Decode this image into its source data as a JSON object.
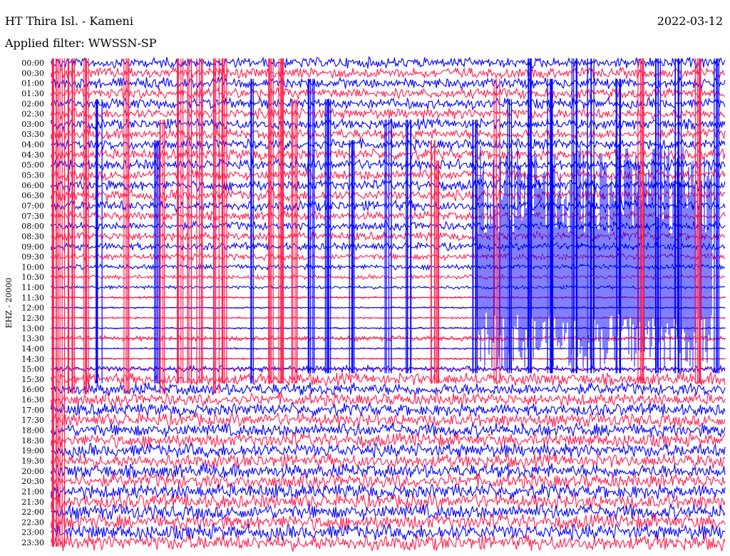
{
  "header": {
    "station": "HT Thira Isl. - Kameni",
    "filter": "Applied filter: WWSSN-SP",
    "date": "2022-03-12"
  },
  "chart_data": {
    "type": "helicorder",
    "ylabel": "EHZ - 20000",
    "colors": {
      "even_trace": "#0000ff",
      "odd_trace": "#ff1f4f",
      "grid": "#ff2a55",
      "background": "#ffffff"
    },
    "rows": [
      {
        "label": "00:00",
        "color": "blue",
        "amp": 0.25
      },
      {
        "label": "00:30",
        "color": "red",
        "amp": 0.25
      },
      {
        "label": "01:00",
        "color": "blue",
        "amp": 0.25
      },
      {
        "label": "01:30",
        "color": "red",
        "amp": 0.25
      },
      {
        "label": "02:00",
        "color": "blue",
        "amp": 0.25
      },
      {
        "label": "02:30",
        "color": "red",
        "amp": 0.25
      },
      {
        "label": "03:00",
        "color": "blue",
        "amp": 0.25
      },
      {
        "label": "03:30",
        "color": "red",
        "amp": 0.25
      },
      {
        "label": "04:00",
        "color": "blue",
        "amp": 0.25
      },
      {
        "label": "04:30",
        "color": "red",
        "amp": 0.25
      },
      {
        "label": "05:00",
        "color": "blue",
        "amp": 0.25
      },
      {
        "label": "05:30",
        "color": "red",
        "amp": 0.25
      },
      {
        "label": "06:00",
        "color": "blue",
        "amp": 0.25
      },
      {
        "label": "06:30",
        "color": "red",
        "amp": 0.25
      },
      {
        "label": "07:00",
        "color": "blue",
        "amp": 0.25
      },
      {
        "label": "07:30",
        "color": "red",
        "amp": 0.2
      },
      {
        "label": "08:00",
        "color": "blue",
        "amp": 0.2
      },
      {
        "label": "08:30",
        "color": "red",
        "amp": 0.2
      },
      {
        "label": "09:00",
        "color": "blue",
        "amp": 0.18
      },
      {
        "label": "09:30",
        "color": "red",
        "amp": 0.15
      },
      {
        "label": "10:00",
        "color": "blue",
        "amp": 0.12
      },
      {
        "label": "10:30",
        "color": "red",
        "amp": 0.1
      },
      {
        "label": "11:00",
        "color": "blue",
        "amp": 0.08
      },
      {
        "label": "11:30",
        "color": "red",
        "amp": 0.05
      },
      {
        "label": "12:00",
        "color": "blue",
        "amp": 0.04
      },
      {
        "label": "12:30",
        "color": "red",
        "amp": 0.04
      },
      {
        "label": "13:00",
        "color": "blue",
        "amp": 0.04
      },
      {
        "label": "13:30",
        "color": "red",
        "amp": 0.12
      },
      {
        "label": "14:00",
        "color": "blue",
        "amp": 0.04
      },
      {
        "label": "14:30",
        "color": "red",
        "amp": 0.04
      },
      {
        "label": "15:00",
        "color": "blue",
        "amp": 0.15
      },
      {
        "label": "15:30",
        "color": "red",
        "amp": 0.3
      },
      {
        "label": "16:00",
        "color": "blue",
        "amp": 0.3
      },
      {
        "label": "16:30",
        "color": "red",
        "amp": 0.3
      },
      {
        "label": "17:00",
        "color": "blue",
        "amp": 0.3
      },
      {
        "label": "17:30",
        "color": "red",
        "amp": 0.32
      },
      {
        "label": "18:00",
        "color": "blue",
        "amp": 0.32
      },
      {
        "label": "18:30",
        "color": "red",
        "amp": 0.33
      },
      {
        "label": "19:00",
        "color": "blue",
        "amp": 0.33
      },
      {
        "label": "19:30",
        "color": "red",
        "amp": 0.34
      },
      {
        "label": "20:00",
        "color": "blue",
        "amp": 0.34
      },
      {
        "label": "20:30",
        "color": "red",
        "amp": 0.35
      },
      {
        "label": "21:00",
        "color": "blue",
        "amp": 0.35
      },
      {
        "label": "21:30",
        "color": "red",
        "amp": 0.36
      },
      {
        "label": "22:00",
        "color": "blue",
        "amp": 0.36
      },
      {
        "label": "22:30",
        "color": "red",
        "amp": 0.37
      },
      {
        "label": "23:00",
        "color": "blue",
        "amp": 0.37
      },
      {
        "label": "23:30",
        "color": "red",
        "amp": 0.38
      }
    ],
    "events": [
      {
        "x": 0.004,
        "color": "red",
        "from": "00:00",
        "to": "23:30"
      },
      {
        "x": 0.015,
        "color": "red",
        "from": "00:00",
        "to": "23:30"
      },
      {
        "x": 0.03,
        "color": "red",
        "from": "00:00",
        "to": "16:00"
      },
      {
        "x": 0.05,
        "color": "red",
        "from": "00:00",
        "to": "16:00"
      },
      {
        "x": 0.07,
        "color": "blue",
        "from": "02:00",
        "to": "15:30"
      },
      {
        "x": 0.11,
        "color": "red",
        "from": "00:00",
        "to": "16:00"
      },
      {
        "x": 0.155,
        "color": "blue",
        "from": "04:00",
        "to": "15:30"
      },
      {
        "x": 0.165,
        "color": "red",
        "from": "03:00",
        "to": "16:00"
      },
      {
        "x": 0.19,
        "color": "red",
        "from": "00:00",
        "to": "15:30"
      },
      {
        "x": 0.205,
        "color": "red",
        "from": "00:00",
        "to": "15:30"
      },
      {
        "x": 0.22,
        "color": "red",
        "from": "00:00",
        "to": "15:30"
      },
      {
        "x": 0.245,
        "color": "red",
        "from": "00:00",
        "to": "16:00"
      },
      {
        "x": 0.255,
        "color": "red",
        "from": "00:00",
        "to": "15:30"
      },
      {
        "x": 0.3,
        "color": "blue",
        "from": "01:00",
        "to": "15:30"
      },
      {
        "x": 0.325,
        "color": "red",
        "from": "00:00",
        "to": "15:30"
      },
      {
        "x": 0.34,
        "color": "red",
        "from": "00:00",
        "to": "15:30"
      },
      {
        "x": 0.36,
        "color": "red",
        "from": "02:00",
        "to": "15:30"
      },
      {
        "x": 0.385,
        "color": "blue",
        "from": "01:00",
        "to": "15:00"
      },
      {
        "x": 0.41,
        "color": "blue",
        "from": "02:00",
        "to": "15:00"
      },
      {
        "x": 0.445,
        "color": "blue",
        "from": "04:00",
        "to": "15:00"
      },
      {
        "x": 0.5,
        "color": "blue",
        "from": "03:00",
        "to": "15:00"
      },
      {
        "x": 0.53,
        "color": "blue",
        "from": "03:00",
        "to": "15:00"
      },
      {
        "x": 0.565,
        "color": "red",
        "from": "04:00",
        "to": "15:30"
      },
      {
        "x": 0.575,
        "color": "red",
        "from": "05:00",
        "to": "15:30"
      },
      {
        "x": 0.63,
        "color": "blue",
        "from": "03:00",
        "to": "15:00"
      },
      {
        "x": 0.66,
        "color": "red",
        "from": "01:00",
        "to": "15:30"
      },
      {
        "x": 0.68,
        "color": "blue",
        "from": "02:00",
        "to": "15:00"
      },
      {
        "x": 0.71,
        "color": "blue",
        "from": "00:00",
        "to": "15:00"
      },
      {
        "x": 0.74,
        "color": "blue",
        "from": "01:00",
        "to": "15:00"
      },
      {
        "x": 0.775,
        "color": "blue",
        "from": "00:00",
        "to": "15:00"
      },
      {
        "x": 0.8,
        "color": "blue",
        "from": "00:00",
        "to": "15:00"
      },
      {
        "x": 0.84,
        "color": "blue",
        "from": "01:00",
        "to": "15:00"
      },
      {
        "x": 0.875,
        "color": "red",
        "from": "00:00",
        "to": "15:30"
      },
      {
        "x": 0.9,
        "color": "blue",
        "from": "00:00",
        "to": "15:00"
      },
      {
        "x": 0.93,
        "color": "blue",
        "from": "00:00",
        "to": "15:00"
      },
      {
        "x": 0.96,
        "color": "red",
        "from": "00:00",
        "to": "15:30"
      },
      {
        "x": 0.985,
        "color": "blue",
        "from": "00:00",
        "to": "15:00"
      }
    ],
    "bursts": [
      {
        "x0": 0.63,
        "x1": 0.98,
        "color": "blue",
        "from": "04:00",
        "to": "15:00"
      }
    ],
    "gridlines": [
      "11:30",
      "12:00",
      "12:30",
      "13:00",
      "13:30",
      "14:00",
      "14:30",
      "15:00"
    ]
  }
}
